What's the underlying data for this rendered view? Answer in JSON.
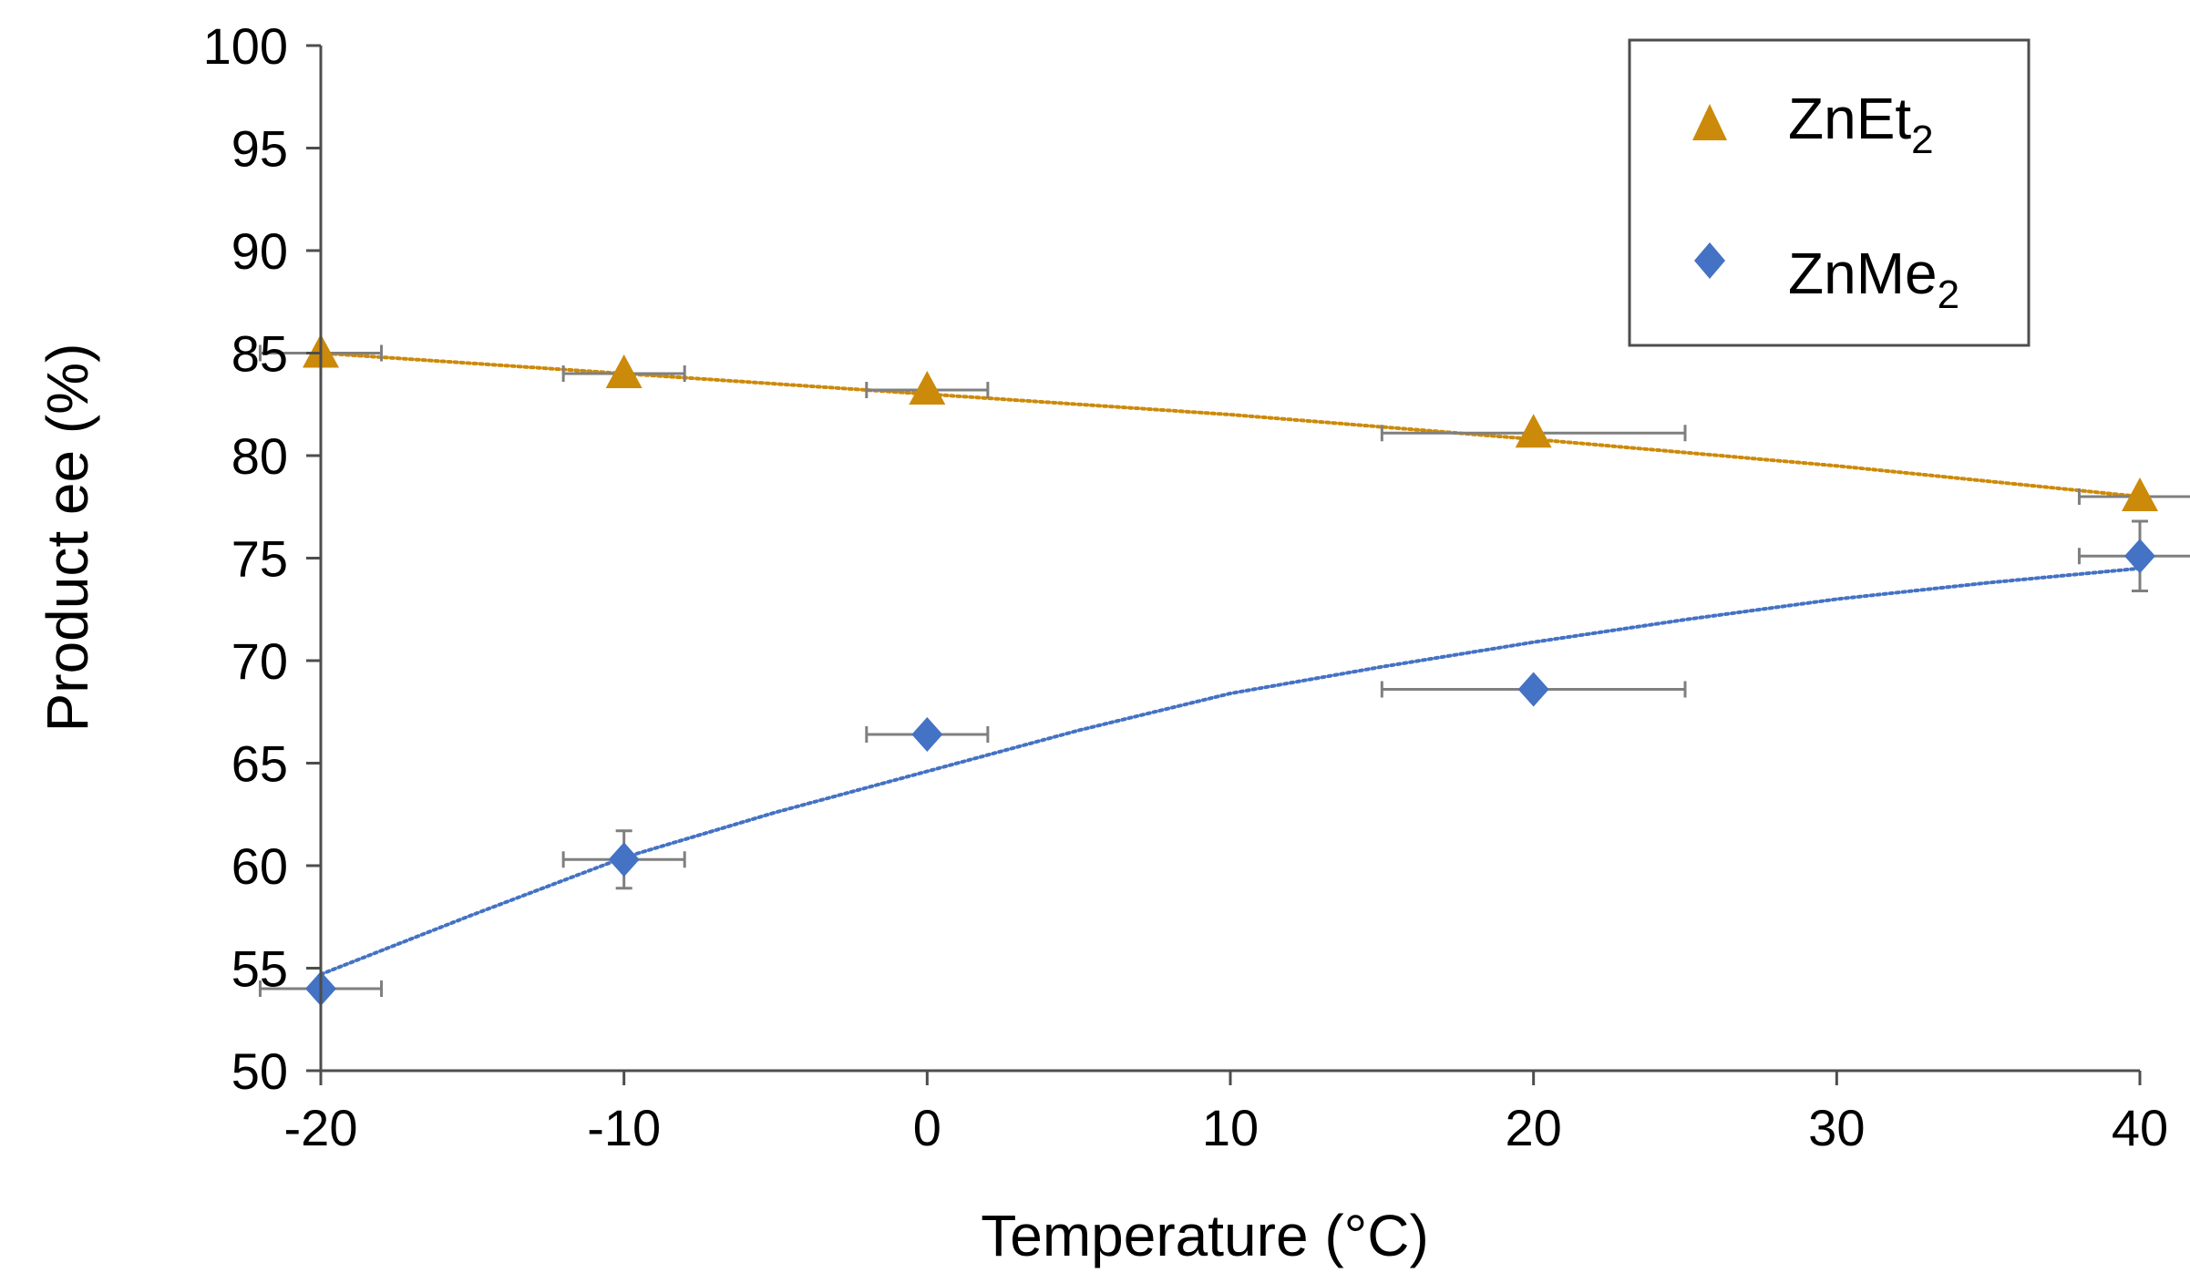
{
  "colors": {
    "zn_et2": "#CC8A0A",
    "zn_me2": "#4472C4",
    "axis": "#4D4D4D",
    "error_bar": "#7F7F7F"
  },
  "chart_data": {
    "type": "scatter",
    "title": "",
    "xlabel": "Temperature (°C)",
    "ylabel": "Product ee (%)",
    "xlim": [
      -20,
      40
    ],
    "ylim": [
      50,
      100
    ],
    "xticks": [
      -20,
      -10,
      0,
      10,
      20,
      30,
      40
    ],
    "xtick_labels": [
      "-20",
      "-10",
      "0",
      "10",
      "20",
      "30",
      "40"
    ],
    "yticks": [
      50,
      55,
      60,
      65,
      70,
      75,
      80,
      85,
      90,
      95,
      100
    ],
    "ytick_labels": [
      "50",
      "55",
      "60",
      "65",
      "70",
      "75",
      "80",
      "85",
      "90",
      "95",
      "100"
    ],
    "grid": false,
    "legend_position": "top-right",
    "series": [
      {
        "name": "ZnEt2",
        "label_main": "ZnEt",
        "label_sub": "2",
        "marker": "triangle",
        "color": "#CC8A0A",
        "x": [
          -20,
          -10,
          0,
          20,
          40
        ],
        "y": [
          85.0,
          84.0,
          83.2,
          81.1,
          78.0
        ],
        "x_err": [
          2,
          2,
          2,
          5,
          2
        ],
        "y_err": [
          0,
          0,
          0,
          0,
          0
        ],
        "trendline": {
          "style": "dotted",
          "x": [
            -20,
            -10,
            0,
            10,
            20,
            30,
            40
          ],
          "y": [
            85.0,
            84.0,
            83.0,
            82.0,
            80.8,
            79.5,
            78.0
          ]
        }
      },
      {
        "name": "ZnMe2",
        "label_main": "ZnMe",
        "label_sub": "2",
        "marker": "diamond",
        "color": "#4472C4",
        "x": [
          -20,
          -10,
          0,
          20,
          40
        ],
        "y": [
          54.0,
          60.3,
          66.4,
          68.6,
          75.1
        ],
        "x_err": [
          2,
          2,
          2,
          5,
          2
        ],
        "y_err": [
          0,
          1.4,
          0,
          0,
          1.7
        ],
        "trendline": {
          "style": "dotted",
          "x": [
            -20,
            -15,
            -10,
            -5,
            0,
            5,
            10,
            15,
            20,
            25,
            30,
            35,
            40
          ],
          "y": [
            54.7,
            57.6,
            60.4,
            62.6,
            64.6,
            66.6,
            68.4,
            69.7,
            70.9,
            72.0,
            73.0,
            73.8,
            74.5
          ]
        }
      }
    ]
  }
}
